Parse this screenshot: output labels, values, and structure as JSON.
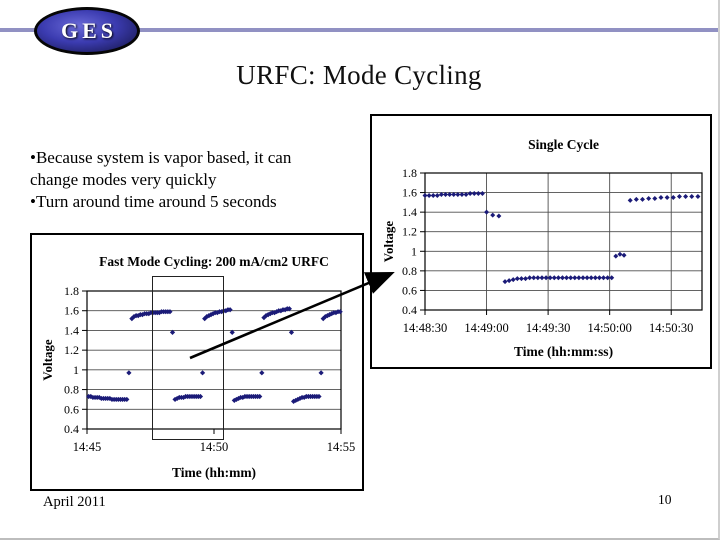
{
  "slide": {
    "title": "URFC: Mode Cycling",
    "logo_text": "GES",
    "footer_date": "April 2011",
    "page_number": "10",
    "accent_line_color": "#9191C3",
    "bullets": [
      {
        "marker": "•",
        "text": "Because system is vapor based, it can"
      },
      {
        "marker": "",
        "text": "change modes very quickly"
      },
      {
        "marker": "•",
        "text": "Turn around time around 5 seconds"
      }
    ],
    "callout": {
      "type": "zoom-region-arrow",
      "from_chart": "fast_mode",
      "to_chart": "single_cycle"
    }
  },
  "chart_data": [
    {
      "id": "fast_mode",
      "type": "scatter",
      "title": "Fast Mode Cycling: 200 mA/cm2 URFC",
      "xlabel": "Time (hh:mm)",
      "ylabel": "Voltage",
      "x_unit": "seconds after 14:45",
      "xlim": [
        0,
        600
      ],
      "ylim": [
        0.4,
        1.8
      ],
      "grid_vertical": false,
      "marker": "diamond",
      "marker_color": "#1b1b78",
      "xticks": [
        {
          "v": 0,
          "label": "14:45"
        },
        {
          "v": 300,
          "label": "14:50"
        },
        {
          "v": 600,
          "label": "14:55"
        }
      ],
      "yticks": [
        {
          "v": 1.8,
          "label": "1.8"
        },
        {
          "v": 1.6,
          "label": "1.6"
        },
        {
          "v": 1.4,
          "label": "1.4"
        },
        {
          "v": 1.2,
          "label": "1.2"
        },
        {
          "v": 1,
          "label": "1"
        },
        {
          "v": 0.8,
          "label": "0.8"
        },
        {
          "v": 0.6,
          "label": "0.6"
        },
        {
          "v": 0.4,
          "label": "0.4"
        }
      ],
      "points": [
        [
          4,
          0.73
        ],
        [
          9,
          0.73
        ],
        [
          14,
          0.72
        ],
        [
          19,
          0.72
        ],
        [
          24,
          0.72
        ],
        [
          29,
          0.72
        ],
        [
          34,
          0.71
        ],
        [
          39,
          0.71
        ],
        [
          44,
          0.71
        ],
        [
          49,
          0.71
        ],
        [
          54,
          0.71
        ],
        [
          59,
          0.7
        ],
        [
          64,
          0.7
        ],
        [
          69,
          0.7
        ],
        [
          74,
          0.7
        ],
        [
          79,
          0.7
        ],
        [
          84,
          0.7
        ],
        [
          89,
          0.7
        ],
        [
          94,
          0.7
        ],
        [
          99,
          0.97
        ],
        [
          106,
          1.52
        ],
        [
          111,
          1.54
        ],
        [
          116,
          1.55
        ],
        [
          121,
          1.55
        ],
        [
          126,
          1.56
        ],
        [
          131,
          1.56
        ],
        [
          136,
          1.57
        ],
        [
          141,
          1.57
        ],
        [
          146,
          1.57
        ],
        [
          151,
          1.58
        ],
        [
          156,
          1.58
        ],
        [
          161,
          1.58
        ],
        [
          166,
          1.58
        ],
        [
          171,
          1.58
        ],
        [
          176,
          1.59
        ],
        [
          181,
          1.59
        ],
        [
          186,
          1.59
        ],
        [
          191,
          1.59
        ],
        [
          196,
          1.59
        ],
        [
          202,
          1.38
        ],
        [
          208,
          0.7
        ],
        [
          213,
          0.71
        ],
        [
          218,
          0.72
        ],
        [
          223,
          0.72
        ],
        [
          228,
          0.72
        ],
        [
          233,
          0.73
        ],
        [
          238,
          0.73
        ],
        [
          243,
          0.73
        ],
        [
          248,
          0.73
        ],
        [
          253,
          0.73
        ],
        [
          258,
          0.73
        ],
        [
          263,
          0.73
        ],
        [
          268,
          0.73
        ],
        [
          273,
          0.97
        ],
        [
          278,
          1.52
        ],
        [
          283,
          1.54
        ],
        [
          288,
          1.55
        ],
        [
          293,
          1.56
        ],
        [
          298,
          1.57
        ],
        [
          303,
          1.58
        ],
        [
          308,
          1.58
        ],
        [
          313,
          1.59
        ],
        [
          318,
          1.59
        ],
        [
          323,
          1.6
        ],
        [
          328,
          1.6
        ],
        [
          333,
          1.61
        ],
        [
          338,
          1.61
        ],
        [
          343,
          1.38
        ],
        [
          348,
          0.69
        ],
        [
          353,
          0.7
        ],
        [
          358,
          0.71
        ],
        [
          363,
          0.72
        ],
        [
          368,
          0.72
        ],
        [
          373,
          0.73
        ],
        [
          378,
          0.73
        ],
        [
          383,
          0.73
        ],
        [
          388,
          0.73
        ],
        [
          393,
          0.73
        ],
        [
          398,
          0.73
        ],
        [
          403,
          0.73
        ],
        [
          408,
          0.73
        ],
        [
          413,
          0.97
        ],
        [
          418,
          1.53
        ],
        [
          423,
          1.55
        ],
        [
          428,
          1.56
        ],
        [
          433,
          1.57
        ],
        [
          438,
          1.58
        ],
        [
          443,
          1.58
        ],
        [
          448,
          1.59
        ],
        [
          453,
          1.6
        ],
        [
          458,
          1.6
        ],
        [
          463,
          1.61
        ],
        [
          468,
          1.61
        ],
        [
          473,
          1.62
        ],
        [
          478,
          1.62
        ],
        [
          483,
          1.38
        ],
        [
          488,
          0.68
        ],
        [
          493,
          0.69
        ],
        [
          498,
          0.7
        ],
        [
          503,
          0.71
        ],
        [
          508,
          0.72
        ],
        [
          513,
          0.72
        ],
        [
          518,
          0.73
        ],
        [
          523,
          0.73
        ],
        [
          528,
          0.73
        ],
        [
          533,
          0.73
        ],
        [
          538,
          0.73
        ],
        [
          543,
          0.73
        ],
        [
          548,
          0.73
        ],
        [
          553,
          0.97
        ],
        [
          558,
          1.52
        ],
        [
          563,
          1.54
        ],
        [
          568,
          1.55
        ],
        [
          573,
          1.56
        ],
        [
          578,
          1.57
        ],
        [
          583,
          1.58
        ],
        [
          588,
          1.58
        ],
        [
          593,
          1.59
        ],
        [
          598,
          1.59
        ]
      ]
    },
    {
      "id": "single_cycle",
      "type": "scatter",
      "title": "Single Cycle",
      "xlabel": "Time (hh:mm:ss)",
      "ylabel": "Voltage",
      "x_unit": "seconds after 14:48:30",
      "xlim": [
        0,
        135
      ],
      "ylim": [
        0.4,
        1.8
      ],
      "grid_vertical": true,
      "marker": "diamond",
      "marker_color": "#1b1b78",
      "xticks": [
        {
          "v": 0,
          "label": "14:48:30"
        },
        {
          "v": 30,
          "label": "14:49:00"
        },
        {
          "v": 60,
          "label": "14:49:30"
        },
        {
          "v": 90,
          "label": "14:50:00"
        },
        {
          "v": 120,
          "label": "14:50:30"
        }
      ],
      "yticks": [
        {
          "v": 1.8,
          "label": "1.8"
        },
        {
          "v": 1.6,
          "label": "1.6"
        },
        {
          "v": 1.4,
          "label": "1.4"
        },
        {
          "v": 1.2,
          "label": "1.2"
        },
        {
          "v": 1,
          "label": "1"
        },
        {
          "v": 0.8,
          "label": "0.8"
        },
        {
          "v": 0.6,
          "label": "0.6"
        },
        {
          "v": 0.4,
          "label": "0.4"
        }
      ],
      "points": [
        [
          0,
          1.57
        ],
        [
          2,
          1.57
        ],
        [
          4,
          1.57
        ],
        [
          6,
          1.57
        ],
        [
          8,
          1.58
        ],
        [
          10,
          1.58
        ],
        [
          12,
          1.58
        ],
        [
          14,
          1.58
        ],
        [
          16,
          1.58
        ],
        [
          18,
          1.58
        ],
        [
          20,
          1.58
        ],
        [
          22,
          1.59
        ],
        [
          24,
          1.59
        ],
        [
          26,
          1.59
        ],
        [
          28,
          1.59
        ],
        [
          30,
          1.4
        ],
        [
          33,
          1.37
        ],
        [
          36,
          1.36
        ],
        [
          39,
          0.69
        ],
        [
          41,
          0.7
        ],
        [
          43,
          0.71
        ],
        [
          45,
          0.72
        ],
        [
          47,
          0.72
        ],
        [
          49,
          0.72
        ],
        [
          51,
          0.73
        ],
        [
          53,
          0.73
        ],
        [
          55,
          0.73
        ],
        [
          57,
          0.73
        ],
        [
          59,
          0.73
        ],
        [
          61,
          0.73
        ],
        [
          63,
          0.73
        ],
        [
          65,
          0.73
        ],
        [
          67,
          0.73
        ],
        [
          69,
          0.73
        ],
        [
          71,
          0.73
        ],
        [
          73,
          0.73
        ],
        [
          75,
          0.73
        ],
        [
          77,
          0.73
        ],
        [
          79,
          0.73
        ],
        [
          81,
          0.73
        ],
        [
          83,
          0.73
        ],
        [
          85,
          0.73
        ],
        [
          87,
          0.73
        ],
        [
          89,
          0.73
        ],
        [
          91,
          0.73
        ],
        [
          93,
          0.95
        ],
        [
          95,
          0.97
        ],
        [
          97,
          0.96
        ],
        [
          100,
          1.52
        ],
        [
          103,
          1.53
        ],
        [
          106,
          1.53
        ],
        [
          109,
          1.54
        ],
        [
          112,
          1.54
        ],
        [
          115,
          1.55
        ],
        [
          118,
          1.55
        ],
        [
          121,
          1.55
        ],
        [
          124,
          1.56
        ],
        [
          127,
          1.56
        ],
        [
          130,
          1.56
        ],
        [
          133,
          1.56
        ]
      ]
    }
  ]
}
